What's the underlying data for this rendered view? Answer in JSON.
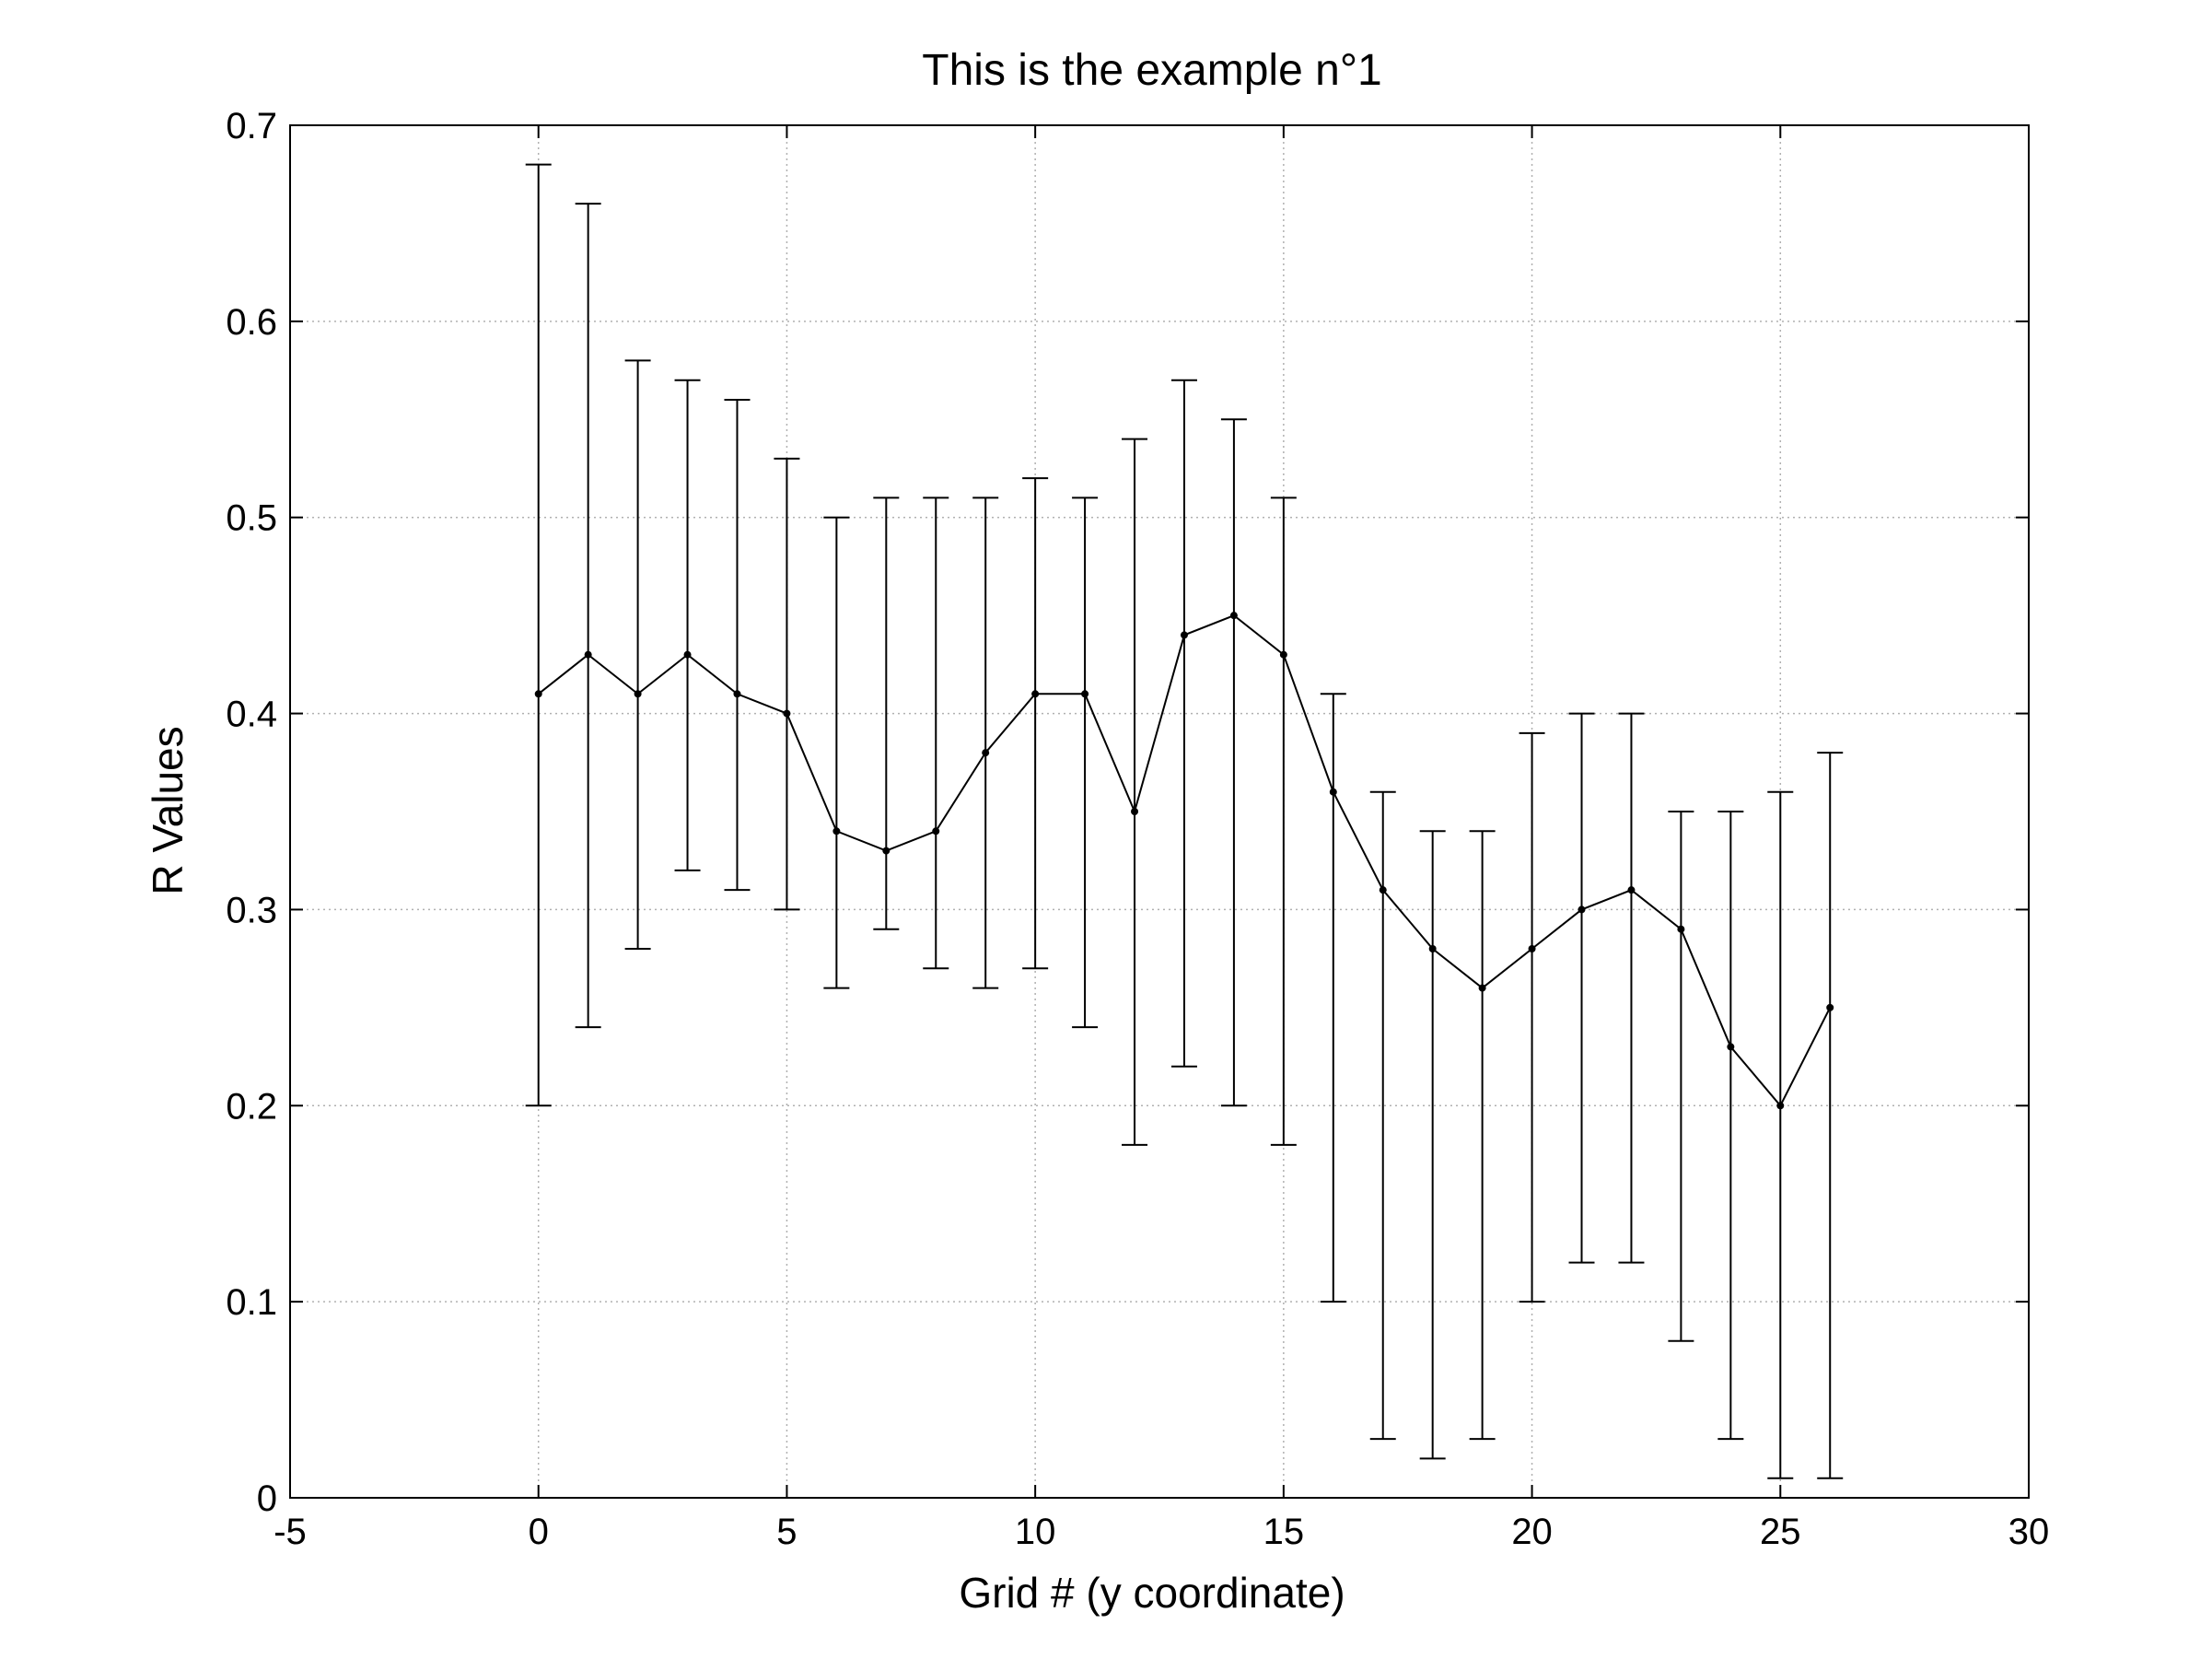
{
  "chart_data": {
    "type": "line",
    "title": "This is the example n°1",
    "xlabel": "Grid # (y coordinate)",
    "ylabel": "R Values",
    "xlim": [
      -5,
      30
    ],
    "ylim": [
      0,
      0.7
    ],
    "xticks": [
      -5,
      0,
      5,
      10,
      15,
      20,
      25,
      30
    ],
    "xtick_labels": [
      "-5",
      "0",
      "5",
      "10",
      "15",
      "20",
      "25",
      "30"
    ],
    "yticks": [
      0,
      0.1,
      0.2,
      0.3,
      0.4,
      0.5,
      0.6,
      0.7
    ],
    "ytick_labels": [
      "0",
      "0.1",
      "0.2",
      "0.3",
      "0.4",
      "0.5",
      "0.6",
      "0.7"
    ],
    "grid": true,
    "legend": "none",
    "line_color": "#000000",
    "grid_color": "#b0b0b0",
    "x": [
      0,
      1,
      2,
      3,
      4,
      5,
      6,
      7,
      8,
      9,
      10,
      11,
      12,
      13,
      14,
      15,
      16,
      17,
      18,
      19,
      20,
      21,
      22,
      23,
      24,
      25,
      26
    ],
    "y": [
      0.41,
      0.43,
      0.41,
      0.43,
      0.41,
      0.4,
      0.34,
      0.33,
      0.34,
      0.38,
      0.41,
      0.41,
      0.35,
      0.44,
      0.45,
      0.43,
      0.36,
      0.31,
      0.28,
      0.26,
      0.28,
      0.3,
      0.31,
      0.29,
      0.23,
      0.2,
      0.25
    ],
    "y_upper": [
      0.68,
      0.66,
      0.58,
      0.57,
      0.56,
      0.53,
      0.5,
      0.51,
      0.51,
      0.51,
      0.52,
      0.51,
      0.54,
      0.57,
      0.55,
      0.51,
      0.41,
      0.36,
      0.34,
      0.34,
      0.39,
      0.4,
      0.4,
      0.35,
      0.35,
      0.36,
      0.38
    ],
    "y_lower": [
      0.2,
      0.24,
      0.28,
      0.32,
      0.31,
      0.3,
      0.26,
      0.29,
      0.27,
      0.26,
      0.27,
      0.24,
      0.18,
      0.22,
      0.2,
      0.18,
      0.1,
      0.03,
      0.02,
      0.03,
      0.1,
      0.12,
      0.12,
      0.08,
      0.03,
      0.01,
      0.01
    ]
  }
}
